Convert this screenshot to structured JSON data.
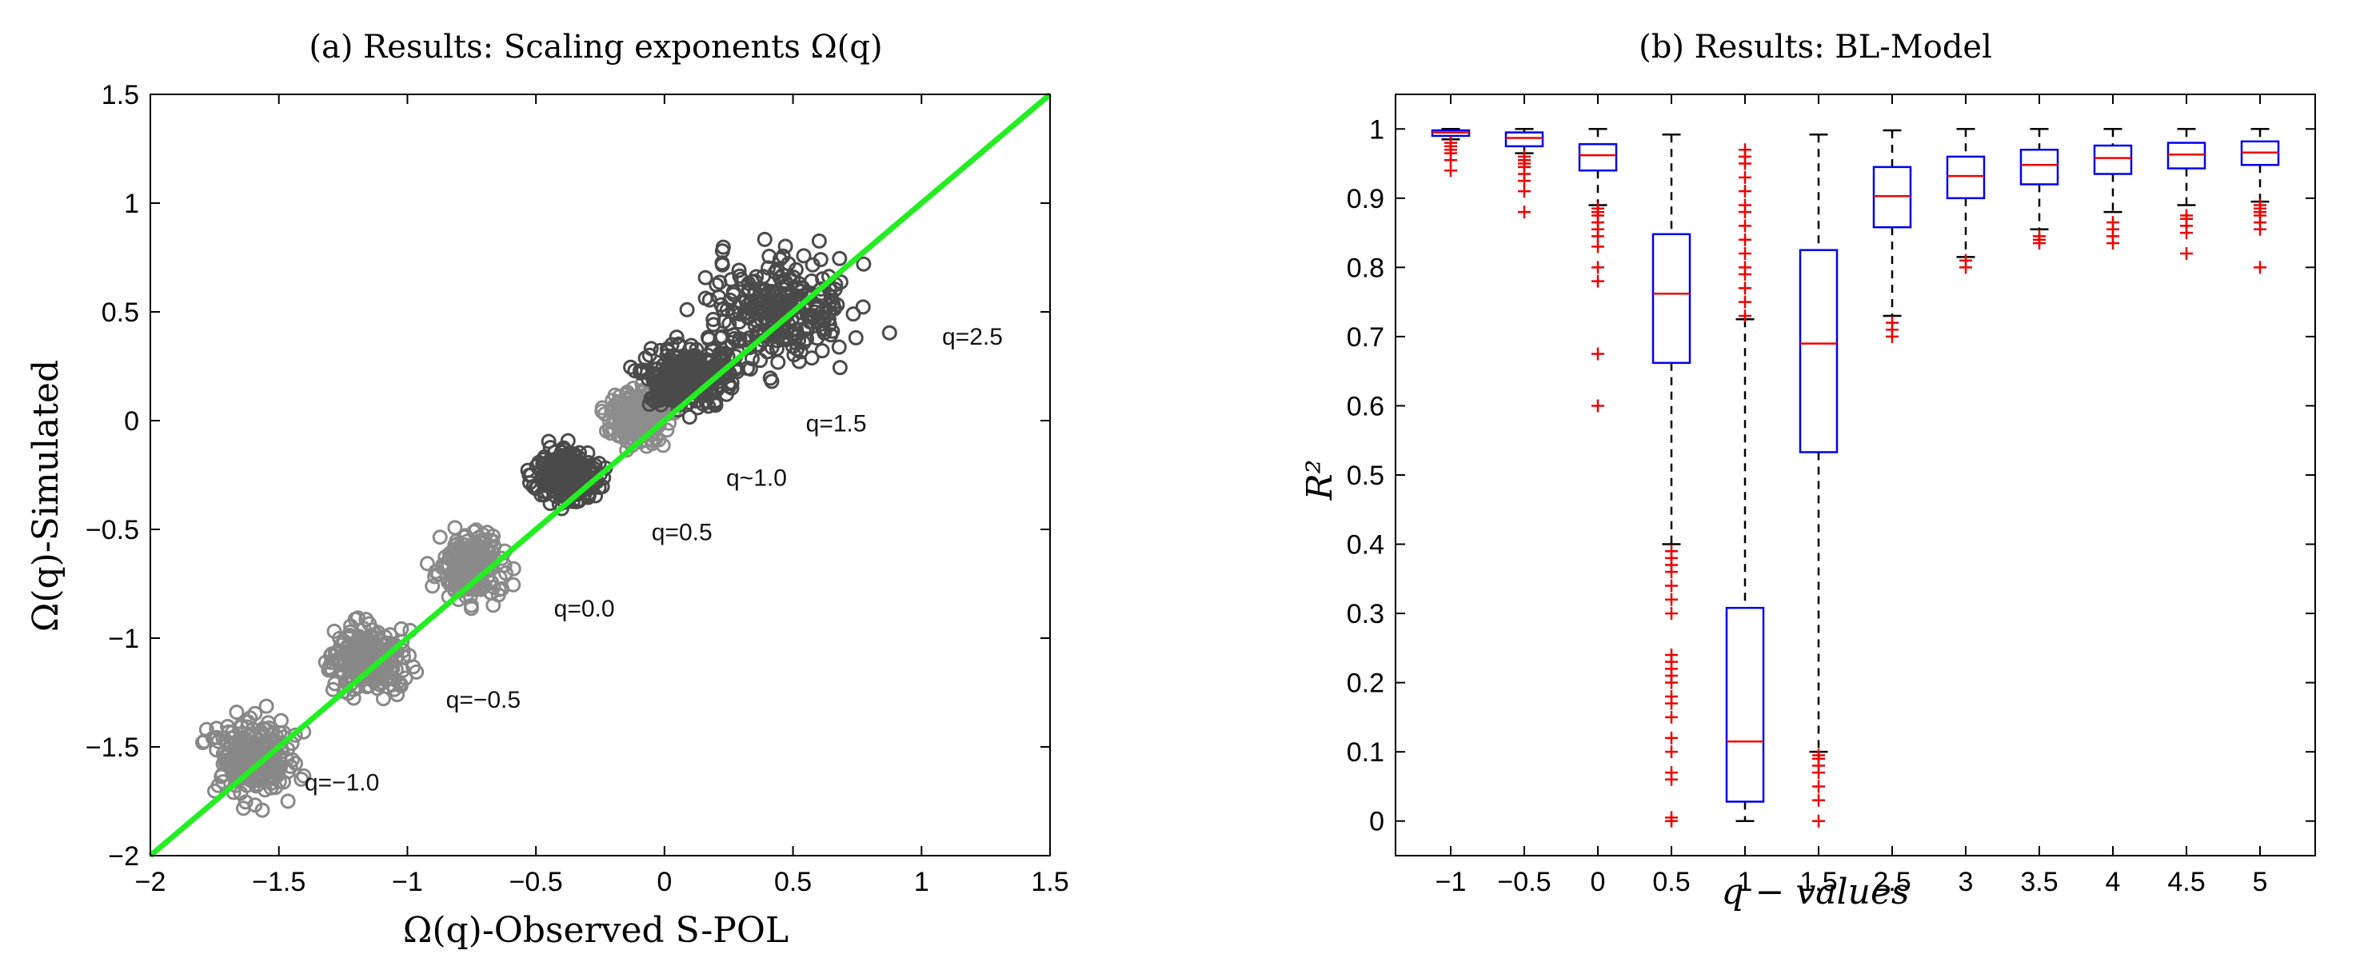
{
  "chart_data": [
    {
      "type": "scatter",
      "title": "(a) Results: Scaling exponents Ω(q)",
      "xlabel": "Ω(q)-Observed S-POL",
      "ylabel": "Ω(q)-Simulated",
      "xlim": [
        -2,
        1.5
      ],
      "ylim": [
        -2,
        1.5
      ],
      "xticks": [
        -2,
        -1.5,
        -1,
        -0.5,
        0,
        0.5,
        1,
        1.5
      ],
      "yticks": [
        -2,
        -1.5,
        -1,
        -0.5,
        0,
        0.5,
        1,
        1.5
      ],
      "xtick_labels": [
        "−2",
        "−1.5",
        "−1",
        "−0.5",
        "0",
        "0.5",
        "1",
        "1.5"
      ],
      "ytick_labels": [
        "−2",
        "−1.5",
        "−1",
        "−0.5",
        "0",
        "0.5",
        "1",
        "1.5"
      ],
      "reference_line": {
        "x": [
          -2,
          1.5
        ],
        "y": [
          -2,
          1.5
        ],
        "color": "#22ee22"
      },
      "clusters": [
        {
          "label": "q=−1.0",
          "cx": -1.6,
          "cy": -1.55,
          "rx": 0.16,
          "ry": 0.17,
          "color": "#888888",
          "label_at": [
            -1.4,
            -1.7
          ]
        },
        {
          "label": "q=−0.5",
          "cx": -1.15,
          "cy": -1.1,
          "rx": 0.14,
          "ry": 0.15,
          "color": "#888888",
          "label_at": [
            -0.85,
            -1.32
          ]
        },
        {
          "label": "q=0.0",
          "cx": -0.75,
          "cy": -0.67,
          "rx": 0.12,
          "ry": 0.14,
          "color": "#8a8a8a",
          "label_at": [
            -0.43,
            -0.9
          ]
        },
        {
          "label": "q=0.5",
          "cx": -0.38,
          "cy": -0.25,
          "rx": 0.11,
          "ry": 0.12,
          "color": "#4a4a4a",
          "label_at": [
            -0.05,
            -0.55
          ]
        },
        {
          "label": "q~1.0",
          "cx": -0.1,
          "cy": 0.02,
          "rx": 0.11,
          "ry": 0.12,
          "color": "#8c8c8c",
          "label_at": [
            0.24,
            -0.3
          ]
        },
        {
          "label": "q=1.5",
          "cx": 0.08,
          "cy": 0.2,
          "rx": 0.16,
          "ry": 0.14,
          "color": "#4a4a4a",
          "label_at": [
            0.55,
            -0.05
          ]
        },
        {
          "label": "q=2.5",
          "cx": 0.45,
          "cy": 0.5,
          "rx": 0.3,
          "ry": 0.25,
          "color": "#4a4a4a",
          "label_at": [
            1.08,
            0.35
          ]
        }
      ]
    },
    {
      "type": "box",
      "title": "(b) Results: BL-Model",
      "xlabel": "q − values",
      "ylabel": "R²",
      "ylim": [
        -0.05,
        1.05
      ],
      "yticks": [
        0,
        0.1,
        0.2,
        0.3,
        0.4,
        0.5,
        0.6,
        0.7,
        0.8,
        0.9,
        1
      ],
      "ytick_labels": [
        "0",
        "0.1",
        "0.2",
        "0.3",
        "0.4",
        "0.5",
        "0.6",
        "0.7",
        "0.8",
        "0.9",
        "1"
      ],
      "categories": [
        "−1",
        "−0.5",
        "0",
        "0.5",
        "1",
        "1.5",
        "2.5",
        "3",
        "3.5",
        "4",
        "4.5",
        "5"
      ],
      "boxes": [
        {
          "q": "−1",
          "whisker_low": 0.985,
          "q1": 0.99,
          "median": 0.995,
          "q3": 0.998,
          "whisker_high": 1.0,
          "outliers": [
            0.94,
            0.955,
            0.965,
            0.97,
            0.975,
            0.98
          ]
        },
        {
          "q": "−0.5",
          "whisker_low": 0.965,
          "q1": 0.975,
          "median": 0.987,
          "q3": 0.995,
          "whisker_high": 1.0,
          "outliers": [
            0.88,
            0.91,
            0.925,
            0.935,
            0.945,
            0.95,
            0.955,
            0.96
          ]
        },
        {
          "q": "0",
          "whisker_low": 0.89,
          "q1": 0.94,
          "median": 0.962,
          "q3": 0.978,
          "whisker_high": 1.0,
          "outliers": [
            0.6,
            0.675,
            0.78,
            0.8,
            0.83,
            0.845,
            0.855,
            0.865,
            0.875,
            0.88,
            0.885
          ]
        },
        {
          "q": "0.5",
          "whisker_low": 0.4,
          "q1": 0.662,
          "median": 0.762,
          "q3": 0.848,
          "whisker_high": 0.992,
          "outliers": [
            0.0,
            0.005,
            0.06,
            0.07,
            0.1,
            0.12,
            0.15,
            0.17,
            0.18,
            0.2,
            0.21,
            0.22,
            0.23,
            0.24,
            0.3,
            0.32,
            0.34,
            0.36,
            0.37,
            0.38,
            0.39
          ]
        },
        {
          "q": "1",
          "whisker_low": 0.0,
          "q1": 0.028,
          "median": 0.115,
          "q3": 0.308,
          "whisker_high": 0.725,
          "outliers": [
            0.73,
            0.75,
            0.77,
            0.79,
            0.8,
            0.82,
            0.84,
            0.86,
            0.88,
            0.89,
            0.91,
            0.93,
            0.95,
            0.96,
            0.97
          ]
        },
        {
          "q": "1.5",
          "whisker_low": 0.1,
          "q1": 0.533,
          "median": 0.69,
          "q3": 0.825,
          "whisker_high": 0.992,
          "outliers": [
            0.0,
            0.03,
            0.05,
            0.07,
            0.08,
            0.09,
            0.095
          ]
        },
        {
          "q": "2.5",
          "whisker_low": 0.73,
          "q1": 0.858,
          "median": 0.903,
          "q3": 0.945,
          "whisker_high": 0.998,
          "outliers": [
            0.7,
            0.71,
            0.72
          ]
        },
        {
          "q": "3",
          "whisker_low": 0.815,
          "q1": 0.9,
          "median": 0.932,
          "q3": 0.96,
          "whisker_high": 1.0,
          "outliers": [
            0.8,
            0.81
          ]
        },
        {
          "q": "3.5",
          "whisker_low": 0.855,
          "q1": 0.92,
          "median": 0.948,
          "q3": 0.97,
          "whisker_high": 1.0,
          "outliers": [
            0.835,
            0.84,
            0.845
          ]
        },
        {
          "q": "4",
          "whisker_low": 0.88,
          "q1": 0.935,
          "median": 0.958,
          "q3": 0.976,
          "whisker_high": 1.0,
          "outliers": [
            0.835,
            0.845,
            0.855,
            0.865
          ]
        },
        {
          "q": "4.5",
          "whisker_low": 0.89,
          "q1": 0.943,
          "median": 0.963,
          "q3": 0.98,
          "whisker_high": 1.0,
          "outliers": [
            0.82,
            0.85,
            0.86,
            0.87,
            0.875
          ]
        },
        {
          "q": "5",
          "whisker_low": 0.895,
          "q1": 0.948,
          "median": 0.966,
          "q3": 0.982,
          "whisker_high": 1.0,
          "outliers": [
            0.8,
            0.855,
            0.865,
            0.875,
            0.88,
            0.885,
            0.89
          ]
        }
      ],
      "box_color": "#0000ee",
      "median_color": "#ee0000",
      "outlier_color": "#ee0000"
    }
  ]
}
